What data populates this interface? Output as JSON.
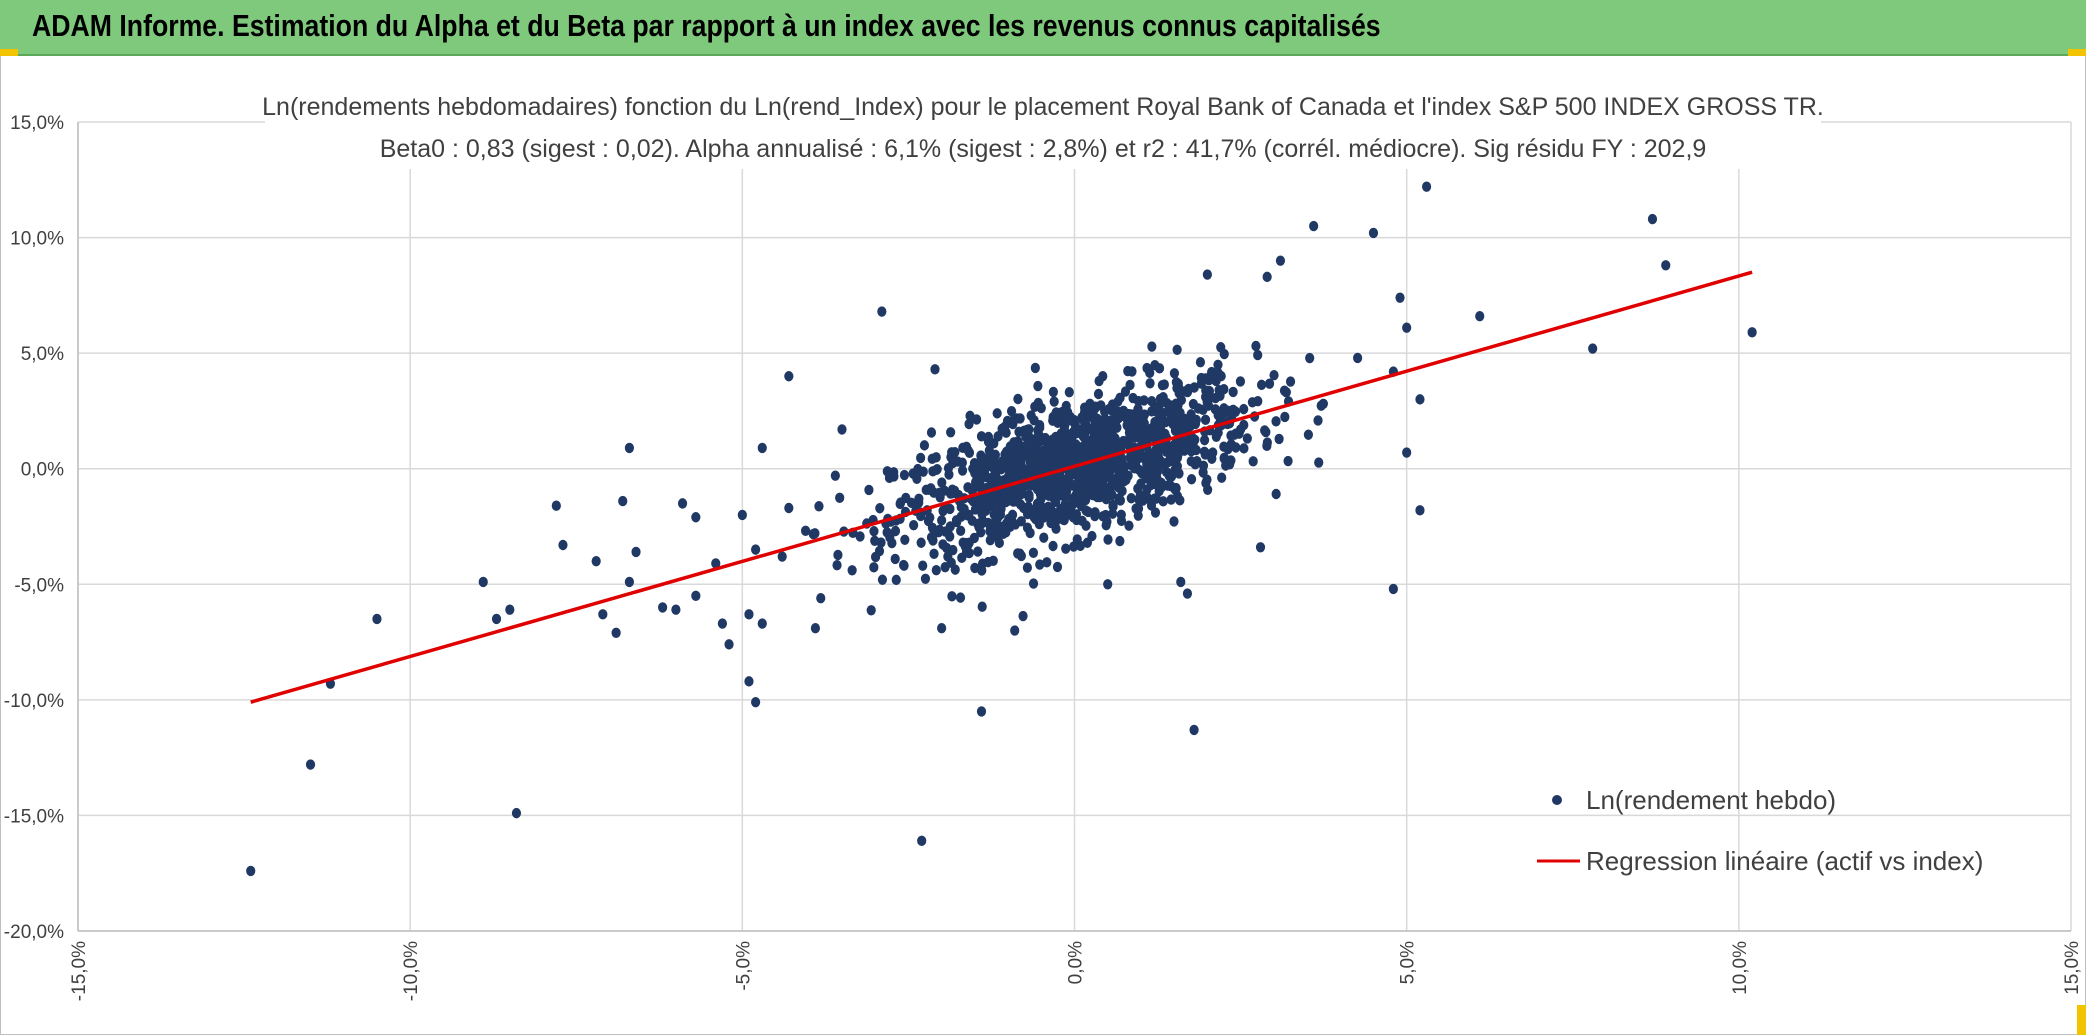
{
  "banner": {
    "title": "ADAM Informe. Estimation du Alpha et du Beta par rapport à un index avec les revenus connus capitalisés"
  },
  "colors": {
    "banner_bg": "#7fc97d",
    "points": "#203864",
    "regression": "#e00000",
    "grid": "#d9d9d9",
    "text": "#404040"
  },
  "chart_data": {
    "type": "scatter",
    "title_line1": "Ln(rendements hebdomadaires) fonction du Ln(rend_Index) pour le placement Royal Bank of Canada et l'index S&P 500 INDEX GROSS TR.",
    "title_line2": "Beta0 : 0,83 (sigest : 0,02). Alpha annualisé : 6,1% (sigest : 2,8%) et r2 : 41,7% (corrél. médiocre). Sig résidu FY : 202,9",
    "xlim": [
      -15,
      15
    ],
    "ylim": [
      -20,
      15
    ],
    "x_ticks": [
      -15,
      -10,
      -5,
      0,
      5,
      10,
      15
    ],
    "y_ticks": [
      15,
      10,
      5,
      0,
      -5,
      -10,
      -15,
      -20
    ],
    "x_tick_labels": [
      "-15,0%",
      "-10,0%",
      "-5,0%",
      "0,0%",
      "5,0%",
      "10,0%",
      "15,0%"
    ],
    "y_tick_labels": [
      "15,0%",
      "10,0%",
      "5,0%",
      "0,0%",
      "-5,0%",
      "-10,0%",
      "-15,0%",
      "-20,0%"
    ],
    "grid": true,
    "legend_position": "bottom-right",
    "series": [
      {
        "name": "Ln(rendement hebdo)",
        "type": "scatter",
        "points": [
          [
            -12.4,
            -17.4
          ],
          [
            -11.5,
            -12.8
          ],
          [
            -11.2,
            -9.3
          ],
          [
            -10.5,
            -6.5
          ],
          [
            -8.9,
            -4.9
          ],
          [
            -8.7,
            -6.5
          ],
          [
            -8.5,
            -6.1
          ],
          [
            -8.4,
            -14.9
          ],
          [
            -7.8,
            -1.6
          ],
          [
            -7.7,
            -3.3
          ],
          [
            -7.2,
            -4.0
          ],
          [
            -7.1,
            -6.3
          ],
          [
            -6.9,
            -7.1
          ],
          [
            -6.8,
            -1.4
          ],
          [
            -6.7,
            -4.9
          ],
          [
            -6.7,
            0.9
          ],
          [
            -6.6,
            -3.6
          ],
          [
            -6.2,
            -6.0
          ],
          [
            -6.0,
            -6.1
          ],
          [
            -5.9,
            -1.5
          ],
          [
            -5.7,
            -5.5
          ],
          [
            -5.7,
            -2.1
          ],
          [
            -5.4,
            -4.1
          ],
          [
            -5.3,
            -6.7
          ],
          [
            -5.2,
            -7.6
          ],
          [
            -5.0,
            -2.0
          ],
          [
            -4.9,
            -6.3
          ],
          [
            -4.9,
            -9.2
          ],
          [
            -4.8,
            -10.1
          ],
          [
            -4.8,
            -3.5
          ],
          [
            -4.7,
            0.9
          ],
          [
            -4.7,
            -6.7
          ],
          [
            -4.4,
            -3.8
          ],
          [
            -4.3,
            -1.7
          ],
          [
            -4.3,
            4.0
          ],
          [
            -3.9,
            -6.9
          ],
          [
            -3.6,
            -0.3
          ],
          [
            -3.5,
            1.7
          ],
          [
            -2.9,
            6.8
          ],
          [
            -2.3,
            -16.1
          ],
          [
            -2.1,
            4.3
          ],
          [
            -2.0,
            -6.9
          ],
          [
            -1.4,
            -10.5
          ],
          [
            -1.4,
            1.4
          ],
          [
            -0.9,
            -7.0
          ],
          [
            0.5,
            -5.0
          ],
          [
            1.6,
            -4.9
          ],
          [
            1.7,
            -5.4
          ],
          [
            1.8,
            -11.3
          ],
          [
            2.0,
            8.4
          ],
          [
            2.8,
            -3.4
          ],
          [
            2.9,
            8.3
          ],
          [
            3.1,
            9.0
          ],
          [
            3.6,
            10.5
          ],
          [
            4.5,
            10.2
          ],
          [
            4.8,
            4.2
          ],
          [
            4.8,
            -5.2
          ],
          [
            4.9,
            7.4
          ],
          [
            5.0,
            6.1
          ],
          [
            5.0,
            0.7
          ],
          [
            5.2,
            -1.8
          ],
          [
            5.2,
            3.0
          ],
          [
            5.3,
            12.2
          ],
          [
            6.1,
            6.6
          ],
          [
            7.8,
            5.2
          ],
          [
            8.7,
            10.8
          ],
          [
            8.9,
            8.8
          ],
          [
            10.2,
            5.9
          ]
        ]
      },
      {
        "name": "Regression linéaire (actif vs index)",
        "type": "line",
        "points": [
          [
            -12.4,
            -10.1
          ],
          [
            10.2,
            8.5
          ]
        ]
      }
    ]
  }
}
